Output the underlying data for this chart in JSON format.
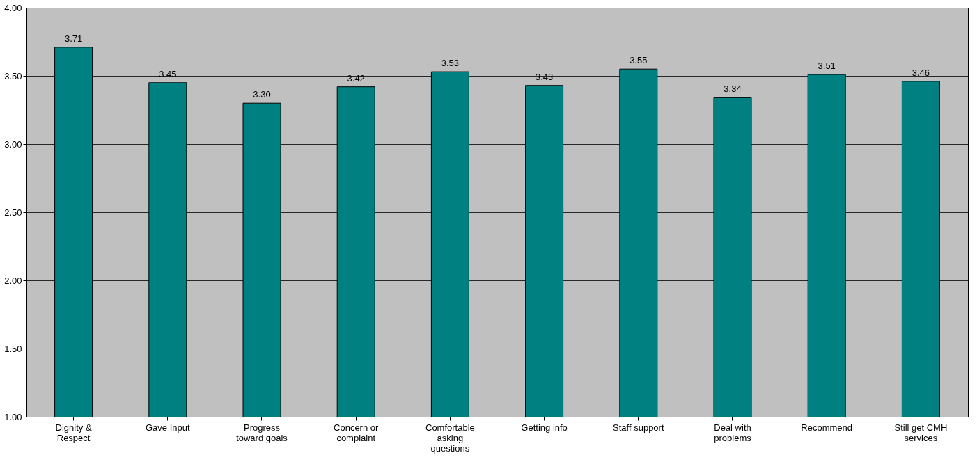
{
  "chart_data": {
    "type": "bar",
    "categories": [
      "Dignity & Respect",
      "Gave Input",
      "Progress toward goals",
      "Concern or complaint",
      "Comfortable asking questions",
      "Getting info",
      "Staff support",
      "Deal with problems",
      "Recommend",
      "Still get CMH services"
    ],
    "values": [
      3.71,
      3.45,
      3.3,
      3.42,
      3.53,
      3.43,
      3.55,
      3.34,
      3.51,
      3.46
    ],
    "value_labels": [
      "3.71",
      "3.45",
      "3.30",
      "3.42",
      "3.53",
      "3.43",
      "3.55",
      "3.34",
      "3.51",
      "3.46"
    ],
    "color": "#008080",
    "ylim": [
      1,
      4
    ],
    "yticks": [
      {
        "value": 1,
        "label": "1.00"
      },
      {
        "value": 1.5,
        "label": "1.50"
      },
      {
        "value": 2,
        "label": "2.00"
      },
      {
        "value": 2.5,
        "label": "2.50"
      },
      {
        "value": 3,
        "label": "3.00"
      },
      {
        "value": 3.5,
        "label": "3.50"
      },
      {
        "value": 4,
        "label": "4.00"
      }
    ],
    "grid": "y"
  }
}
